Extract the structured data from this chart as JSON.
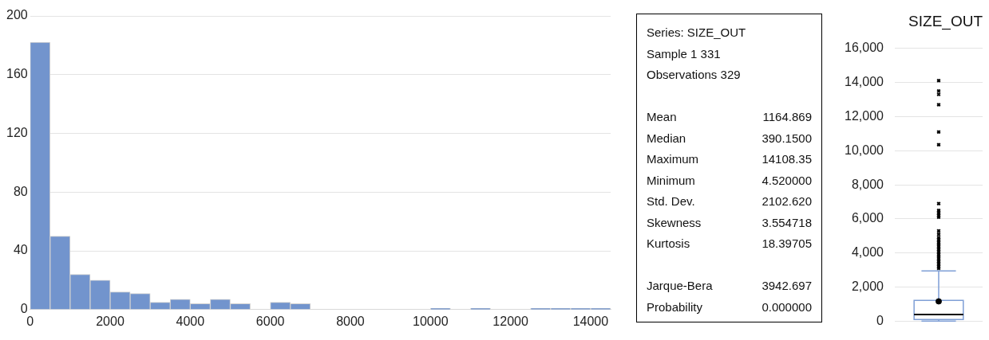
{
  "chart_data": [
    {
      "type": "histogram",
      "bins": [
        0,
        500,
        1000,
        1500,
        2000,
        2500,
        3000,
        3500,
        4000,
        4500,
        5000,
        5500,
        6000,
        6500,
        7000,
        7500,
        8000,
        8500,
        9000,
        9500,
        10000,
        10500,
        11000,
        11500,
        12000,
        12500,
        13000,
        13500,
        14000,
        14500
      ],
      "values": [
        182,
        50,
        24,
        20,
        12,
        11,
        5,
        7,
        4,
        7,
        4,
        0,
        5,
        4,
        0,
        0,
        0,
        0,
        0,
        0,
        1,
        0,
        1,
        0,
        0,
        1,
        1,
        1,
        1
      ],
      "color": "#7294cd",
      "xlim": [
        0,
        14500
      ],
      "xticks": [
        0,
        2000,
        4000,
        6000,
        8000,
        10000,
        12000,
        14000
      ],
      "ylim": [
        0,
        200
      ],
      "yticks": [
        0,
        40,
        80,
        120,
        160,
        200
      ],
      "grid": "y",
      "legend": false
    },
    {
      "type": "other",
      "annotations": [
        "Series: SIZE_OUT",
        "Sample 1 331",
        "Observations 329"
      ],
      "categories": [
        "Mean",
        "Median",
        "Maximum",
        "Minimum",
        "Std. Dev.",
        "Skewness",
        "Kurtosis",
        null,
        "Jarque-Bera",
        "Probability"
      ],
      "values": [
        1164.869,
        390.15,
        14108.35,
        4.52,
        2102.62,
        3.554718,
        18.39705,
        null,
        3942.697,
        0
      ],
      "value_labels": [
        "1164.869",
        "390.1500",
        "14108.35",
        "4.520000",
        "2102.620",
        "3.554718",
        "18.39705",
        null,
        "3942.697",
        "0.000000"
      ]
    },
    {
      "type": "box",
      "title": "SIZE_OUT",
      "categories": [
        null
      ],
      "color": "#7f9fd6",
      "legend": false,
      "grid": "y",
      "boxes": [
        {
          "low": 4.52,
          "q1": 100,
          "median": 390.15,
          "q3": 1220,
          "high": 2950,
          "mean": 1164.869,
          "outliers": [
            3100,
            3200,
            3300,
            3400,
            3500,
            3600,
            3700,
            3800,
            3900,
            4000,
            4100,
            4200,
            4300,
            4400,
            4500,
            4600,
            4700,
            4800,
            4900,
            5100,
            5300,
            6100,
            6200,
            6300,
            6400,
            6500,
            6900,
            10350,
            11100,
            12700,
            13300,
            13500,
            14108.35
          ]
        }
      ],
      "ylim": [
        0,
        16000
      ],
      "yticks": [
        {
          "value": 0,
          "label": "0"
        },
        {
          "value": 2000,
          "label": "2,000"
        },
        {
          "value": 4000,
          "label": "4,000"
        },
        {
          "value": 6000,
          "label": "6,000"
        },
        {
          "value": 8000,
          "label": "8,000"
        },
        {
          "value": 10000,
          "label": "10,000"
        },
        {
          "value": 12000,
          "label": "12,000"
        },
        {
          "value": 14000,
          "label": "14,000"
        },
        {
          "value": 16000,
          "label": "16,000"
        }
      ]
    }
  ]
}
